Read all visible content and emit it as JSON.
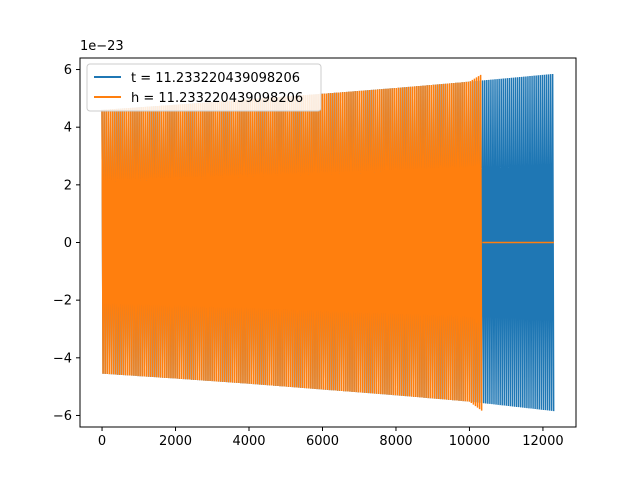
{
  "chart_data": {
    "type": "line",
    "title": "",
    "xlabel": "",
    "ylabel": "",
    "y_offset_label": "1e−23",
    "xlim": [
      -600,
      12900
    ],
    "ylim": [
      -6.4,
      6.4
    ],
    "x_ticks": [
      0,
      2000,
      4000,
      6000,
      8000,
      10000,
      12000
    ],
    "x_tick_labels": [
      "0",
      "2000",
      "4000",
      "6000",
      "8000",
      "10000",
      "12000"
    ],
    "y_ticks": [
      -6,
      -4,
      -2,
      0,
      2,
      4,
      6
    ],
    "y_tick_labels": [
      "−6",
      "−4",
      "−2",
      "0",
      "2",
      "4",
      "6"
    ],
    "grid": false,
    "legend_position": "top-left",
    "series": [
      {
        "name": "t = 11.233220439098206",
        "color": "#1f77b4",
        "x": [
          0,
          2000,
          4000,
          6000,
          8000,
          10000,
          12300
        ],
        "y_upper": [
          4.6,
          4.78,
          4.97,
          5.16,
          5.36,
          5.58,
          5.85
        ],
        "y_lower": [
          -4.55,
          -4.72,
          -4.9,
          -5.1,
          -5.3,
          -5.52,
          -5.85
        ]
      },
      {
        "name": "h = 11.233220439098206",
        "color": "#ff7f0e",
        "x": [
          0,
          2000,
          4000,
          6000,
          8000,
          10000,
          10350
        ],
        "y_upper": [
          4.6,
          4.78,
          4.97,
          5.16,
          5.36,
          5.58,
          5.85
        ],
        "y_lower": [
          -4.55,
          -4.72,
          -4.9,
          -5.1,
          -5.3,
          -5.52,
          -5.85
        ],
        "tail_x": [
          10350,
          12300
        ],
        "tail_y": [
          0,
          0
        ]
      }
    ]
  },
  "legend": {
    "entries": [
      {
        "label": "t = 11.233220439098206",
        "color": "#1f77b4"
      },
      {
        "label": "h = 11.233220439098206",
        "color": "#ff7f0e"
      }
    ]
  }
}
